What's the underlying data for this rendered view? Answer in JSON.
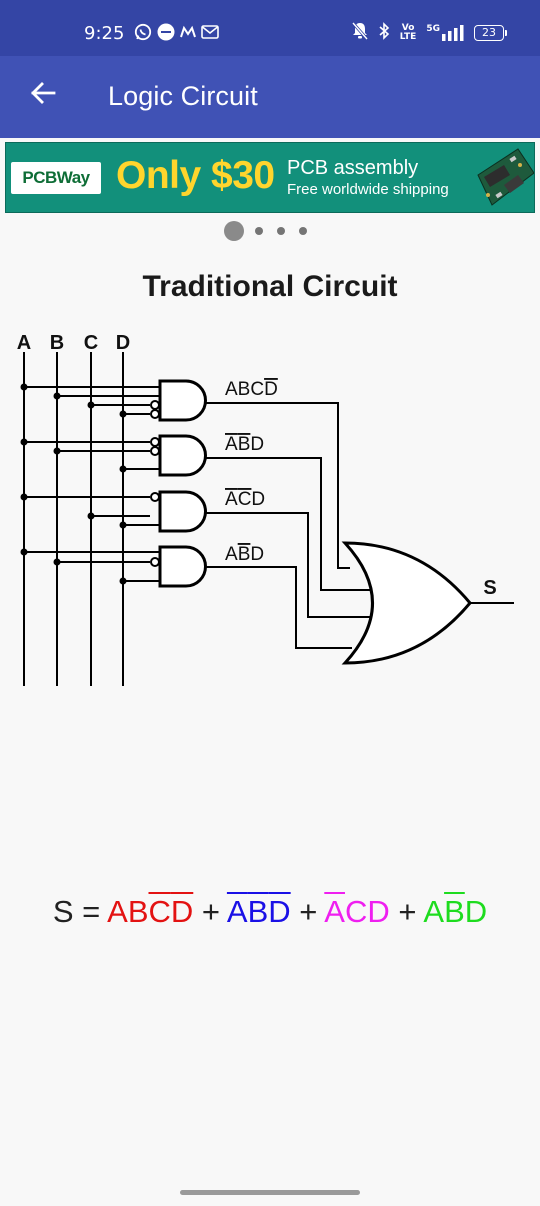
{
  "status_bar": {
    "time": "9:25",
    "left_icons": [
      "whatsapp-icon",
      "message-icon",
      "m-icon",
      "gmail-icon"
    ],
    "right_icons": [
      "mute-icon",
      "bluetooth-icon",
      "volte-icon",
      "signal-5g-icon"
    ],
    "volte_label_top": "Vo",
    "volte_label_bottom": "LTE",
    "network_label": "5G",
    "battery": "23"
  },
  "app_bar": {
    "title": "Logic Circuit",
    "back_icon": "arrow-left-icon",
    "background": "#4052b5"
  },
  "ad_banner": {
    "brand": "PCBWay",
    "promo": "Only $30",
    "line1": "PCB assembly",
    "line2": "Free worldwide shipping"
  },
  "pager": {
    "count": 4,
    "active_index": 0
  },
  "content": {
    "title": "Traditional Circuit",
    "inputs": [
      "A",
      "B",
      "C",
      "D"
    ],
    "output_label": "S",
    "gate_labels": [
      {
        "parts": [
          {
            "t": "ABC",
            "bar": false
          },
          {
            "t": "D",
            "bar": true
          }
        ]
      },
      {
        "parts": [
          {
            "t": "A",
            "bar": true
          },
          {
            "t": "B",
            "bar": true
          },
          {
            "t": "D",
            "bar": false
          }
        ]
      },
      {
        "parts": [
          {
            "t": "A",
            "bar": true
          },
          {
            "t": "C",
            "bar": true
          },
          {
            "t": "D",
            "bar": false
          }
        ]
      },
      {
        "parts": [
          {
            "t": "A",
            "bar": false
          },
          {
            "t": "B",
            "bar": true
          },
          {
            "t": "D",
            "bar": false
          }
        ]
      }
    ]
  },
  "equation": {
    "lhs": "S = ",
    "plus": " + ",
    "terms": [
      {
        "color": "#e31212",
        "parts": [
          {
            "t": "AB",
            "bar": false
          },
          {
            "t": "C",
            "bar": true
          },
          {
            "t": "D",
            "bar": true
          }
        ]
      },
      {
        "color": "#1a10e6",
        "parts": [
          {
            "t": "A",
            "bar": true
          },
          {
            "t": "B",
            "bar": true
          },
          {
            "t": "D",
            "bar": true
          }
        ]
      },
      {
        "color": "#ef1ff0",
        "parts": [
          {
            "t": "A",
            "bar": true
          },
          {
            "t": "C",
            "bar": false
          },
          {
            "t": "D",
            "bar": false
          }
        ]
      },
      {
        "color": "#1edc1f",
        "parts": [
          {
            "t": "A",
            "bar": false
          },
          {
            "t": "B",
            "bar": true
          },
          {
            "t": "D",
            "bar": false
          }
        ]
      }
    ]
  }
}
